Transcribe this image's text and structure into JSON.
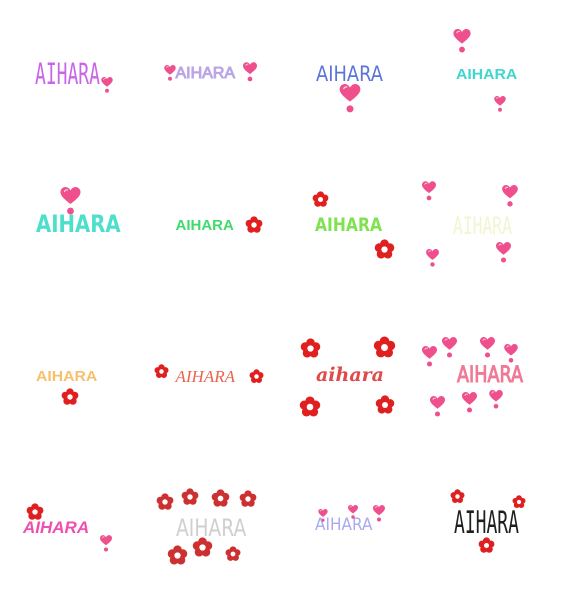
{
  "sheet": {
    "background": "#ffffff",
    "stickers": [
      {
        "text": "AIHARA",
        "color": "#c966e8",
        "decoration": "heart-icon",
        "decoration_color": "#ef4f8c"
      },
      {
        "text": "AIHARA",
        "color": "#b9a6e6",
        "decoration": "heart-icon",
        "decoration_color": "#ef4f8c"
      },
      {
        "text": "AIHARA",
        "color": "#5b74d9",
        "decoration": "heart-icon",
        "decoration_color": "#ef4f8c"
      },
      {
        "text": "AIHARA",
        "color": "#3fd6d0",
        "decoration": "heart-icon",
        "decoration_color": "#ef4f8c"
      },
      {
        "text": "AIHARA",
        "color": "#4ce0cc",
        "decoration": "heart-icon",
        "decoration_color": "#ef4f8c"
      },
      {
        "text": "AIHARA",
        "color": "#3fda6e",
        "decoration": "flower-icon",
        "decoration_color": "#e01f1f"
      },
      {
        "text": "AIHARA",
        "color": "#7fe24f",
        "decoration": "flower-icon",
        "decoration_color": "#e01f1f"
      },
      {
        "text": "AIHARA",
        "color": "#f2f4d2",
        "decoration": "heart-icon",
        "decoration_color": "#ef4f8c"
      },
      {
        "text": "AIHARA",
        "color": "#f6c06d",
        "decoration": "flower-icon",
        "decoration_color": "#e01f1f"
      },
      {
        "text": "AIHARA",
        "color": "#e9644f",
        "decoration": "flower-icon",
        "decoration_color": "#e01f1f"
      },
      {
        "text": "aihara",
        "color": "#df4a4a",
        "decoration": "flower-icon",
        "decoration_color": "#e01f1f"
      },
      {
        "text": "AIHARA",
        "color": "#f07996",
        "decoration": "heart-icon",
        "decoration_color": "#ef4f8c"
      },
      {
        "text": "AIHARA",
        "color": "#ef4fb0",
        "decoration": "flower-icon",
        "decoration_color": "#e01f1f"
      },
      {
        "text": "AIHARA",
        "color": "#cfcfcf",
        "decoration": "flower-icon",
        "decoration_color": "#cc3030"
      },
      {
        "text": "AIHARA",
        "color": "#a9a9ef",
        "decoration": "heart-icon",
        "decoration_color": "#ef4f8c"
      },
      {
        "text": "AIHARA",
        "color": "#1f1f1f",
        "decoration": "flower-icon",
        "decoration_color": "#e01f1f"
      }
    ]
  }
}
